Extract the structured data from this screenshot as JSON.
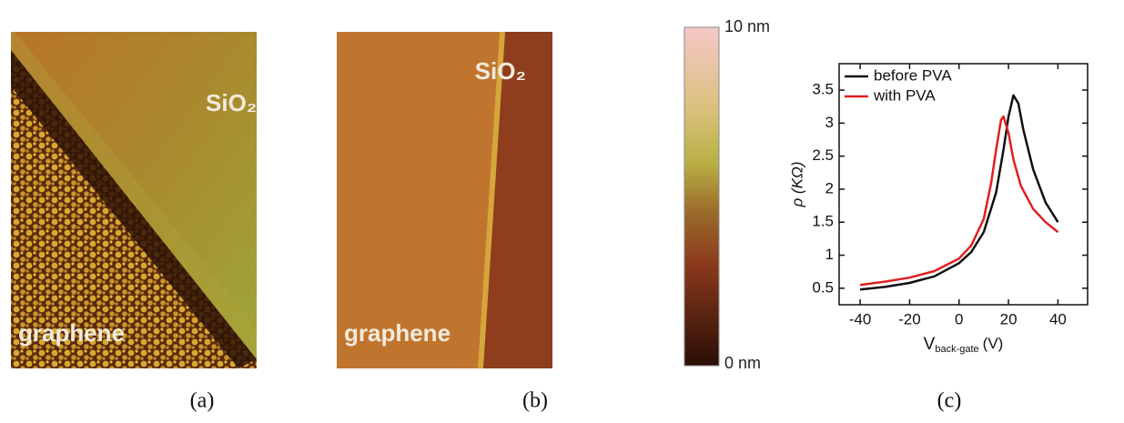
{
  "panels": [
    {
      "labels": [
        "SiO₂",
        "graphene"
      ]
    },
    {
      "labels": [
        "SiO₂",
        "graphene"
      ]
    }
  ],
  "colorbar": {
    "max_label": "10 nm",
    "min_label": "0 nm"
  },
  "captions": [
    "(a)",
    "(b)",
    "(c)"
  ],
  "chart_data": {
    "type": "line",
    "y_label": "ρ (KΩ)",
    "x_label": "V",
    "x_label_sub": "back-gate",
    "x_label_unit": "(V)",
    "xlim": [
      -48.5,
      52
    ],
    "xticks": [
      -40,
      -20,
      0,
      20,
      40
    ],
    "ylim": [
      0.25,
      3.9
    ],
    "yticks": [
      0.5,
      1.0,
      1.5,
      2.0,
      2.5,
      3.0,
      3.5
    ],
    "legend": "top-left",
    "series": [
      {
        "name": "before PVA",
        "color": "#111111",
        "x": [
          -40,
          -30,
          -20,
          -10,
          0,
          5,
          10,
          15,
          18,
          20,
          22,
          24,
          26,
          30,
          35,
          40
        ],
        "values": [
          0.48,
          0.52,
          0.58,
          0.68,
          0.88,
          1.05,
          1.35,
          1.95,
          2.6,
          3.1,
          3.42,
          3.3,
          2.9,
          2.3,
          1.8,
          1.5
        ]
      },
      {
        "name": "with PVA",
        "color": "#e02020",
        "x": [
          -40,
          -30,
          -20,
          -10,
          0,
          5,
          10,
          13,
          15,
          17,
          18,
          20,
          22,
          25,
          30,
          35,
          40
        ],
        "values": [
          0.55,
          0.6,
          0.66,
          0.76,
          0.95,
          1.15,
          1.55,
          2.1,
          2.6,
          3.05,
          3.1,
          2.85,
          2.45,
          2.05,
          1.7,
          1.5,
          1.35
        ]
      }
    ]
  }
}
